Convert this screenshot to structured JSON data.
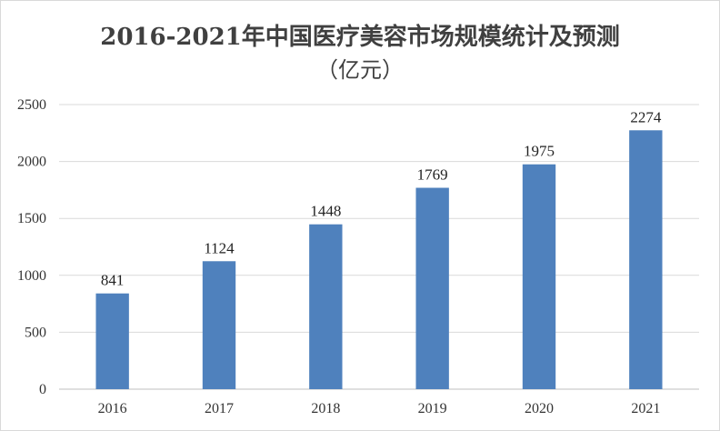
{
  "chart_data": {
    "type": "bar",
    "title": "2016-2021年中国医疗美容市场规模统计及预测",
    "subtitle": "（亿元）",
    "categories": [
      "2016",
      "2017",
      "2018",
      "2019",
      "2020",
      "2021"
    ],
    "values": [
      841,
      1124,
      1448,
      1769,
      1975,
      2274
    ],
    "data_labels": [
      "841",
      "1124",
      "1448",
      "1769",
      "1975",
      "2274"
    ],
    "y_ticks": [
      "0",
      "500",
      "1000",
      "1500",
      "2000",
      "2500"
    ],
    "ylim": [
      0,
      2500
    ],
    "xlabel": "",
    "ylabel": "",
    "grid": true,
    "legend": "none",
    "colors": {
      "bar": "#4f81bd",
      "grid": "#d9d9d9",
      "axis": "#bfbfbf"
    }
  }
}
